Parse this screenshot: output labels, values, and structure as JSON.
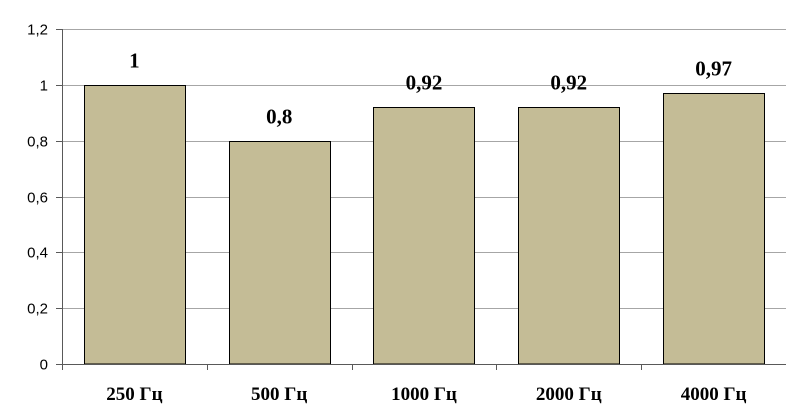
{
  "chart_data": {
    "type": "bar",
    "categories": [
      "250 Гц",
      "500 Гц",
      "1000 Гц",
      "2000 Гц",
      "4000 Гц"
    ],
    "values": [
      1,
      0.8,
      0.92,
      0.92,
      0.97
    ],
    "data_labels": [
      "1",
      "0,8",
      "0,92",
      "0,92",
      "0,97"
    ],
    "yticks": [
      0,
      0.2,
      0.4,
      0.6,
      0.8,
      1,
      1.2
    ],
    "ytick_labels": [
      "0",
      "0,2",
      "0,4",
      "0,6",
      "0,8",
      "1",
      "1,2"
    ],
    "ylim": [
      0,
      1.2
    ],
    "grid": true,
    "bar_color": "#c4bc96",
    "title": "",
    "xlabel": "",
    "ylabel": ""
  }
}
